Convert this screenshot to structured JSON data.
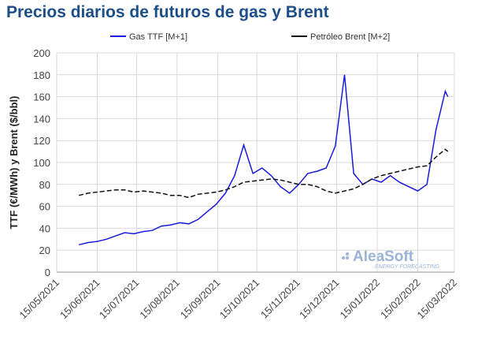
{
  "chart_data": {
    "type": "line",
    "title": "Precios diarios de futuros de gas y Brent",
    "y_label": "TTF (€/MWh) y Brent ($/bbl)",
    "logo": {
      "name": "AleaSoft",
      "tagline": "ENERGY FORECASTING"
    },
    "legend": "top",
    "grid": true,
    "x": [
      "01/06/2021",
      "08/06/2021",
      "15/06/2021",
      "22/06/2021",
      "29/06/2021",
      "06/07/2021",
      "13/07/2021",
      "20/07/2021",
      "27/07/2021",
      "03/08/2021",
      "10/08/2021",
      "17/08/2021",
      "24/08/2021",
      "31/08/2021",
      "07/09/2021",
      "14/09/2021",
      "21/09/2021",
      "28/09/2021",
      "05/10/2021",
      "12/10/2021",
      "19/10/2021",
      "26/10/2021",
      "02/11/2021",
      "09/11/2021",
      "16/11/2021",
      "23/11/2021",
      "30/11/2021",
      "07/12/2021",
      "14/12/2021",
      "21/12/2021",
      "28/12/2021",
      "04/01/2022",
      "11/01/2022",
      "18/01/2022",
      "25/01/2022",
      "01/02/2022",
      "08/02/2022",
      "15/02/2022",
      "22/02/2022",
      "01/03/2022",
      "08/03/2022",
      "10/03/2022"
    ],
    "series": [
      {
        "name": "Gas TTF [M+1]",
        "color": "#1a1adc",
        "dash": false,
        "values": [
          25,
          27,
          28,
          30,
          33,
          36,
          35,
          37,
          38,
          42,
          43,
          45,
          44,
          48,
          55,
          62,
          72,
          88,
          116,
          90,
          95,
          88,
          78,
          72,
          80,
          90,
          92,
          95,
          115,
          180,
          90,
          80,
          85,
          82,
          88,
          82,
          78,
          74,
          80,
          130,
          165,
          160
        ]
      },
      {
        "name": "Petróleo Brent [M+2]",
        "color": "#111111",
        "dash": true,
        "values": [
          70,
          72,
          73,
          74,
          75,
          75,
          73,
          74,
          73,
          72,
          70,
          70,
          68,
          71,
          72,
          73,
          75,
          78,
          82,
          83,
          84,
          85,
          84,
          82,
          80,
          80,
          78,
          74,
          72,
          74,
          76,
          80,
          85,
          88,
          90,
          92,
          94,
          96,
          97,
          105,
          112,
          110
        ]
      }
    ],
    "ylim": [
      0,
      200
    ],
    "yticks": [
      0,
      20,
      40,
      60,
      80,
      100,
      120,
      140,
      160,
      180,
      200
    ],
    "xlim": [
      "15/05/2021",
      "15/03/2022"
    ],
    "xticks": [
      "15/05/2021",
      "15/06/2021",
      "15/07/2021",
      "15/08/2021",
      "15/09/2021",
      "15/10/2021",
      "15/11/2021",
      "15/12/2021",
      "15/01/2022",
      "15/02/2022",
      "15/03/2022"
    ]
  }
}
